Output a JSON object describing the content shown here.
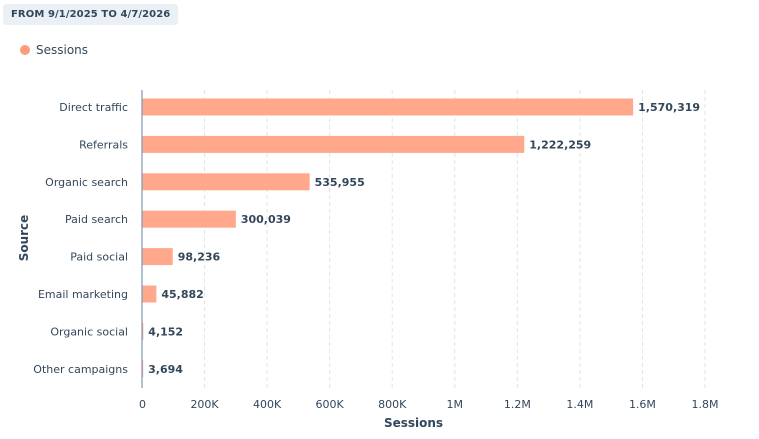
{
  "date_range": "FROM 9/1/2025 TO 4/7/2026",
  "colors": {
    "bar": "#ffa88c",
    "legend_dot": "#ff9b7a",
    "axis": "#7c98b6",
    "grid": "#dfe3eb",
    "text": "#33475b"
  },
  "chart_data": {
    "type": "bar",
    "orientation": "horizontal",
    "categories": [
      "Direct traffic",
      "Referrals",
      "Organic search",
      "Paid search",
      "Paid social",
      "Email marketing",
      "Organic social",
      "Other campaigns"
    ],
    "series": [
      {
        "name": "Sessions",
        "values": [
          1570319,
          1222259,
          535955,
          300039,
          98236,
          45882,
          4152,
          3694
        ]
      }
    ],
    "value_labels": [
      "1,570,319",
      "1,222,259",
      "535,955",
      "300,039",
      "98,236",
      "45,882",
      "4,152",
      "3,694"
    ],
    "xlabel": "Sessions",
    "ylabel": "Source",
    "xlim": [
      0,
      1800000
    ],
    "x_ticks": [
      0,
      200000,
      400000,
      600000,
      800000,
      1000000,
      1200000,
      1400000,
      1600000,
      1800000
    ],
    "x_tick_labels": [
      "0",
      "200K",
      "400K",
      "600K",
      "800K",
      "1M",
      "1.2M",
      "1.4M",
      "1.6M",
      "1.8M"
    ],
    "grid": true,
    "legend": "top-left"
  }
}
